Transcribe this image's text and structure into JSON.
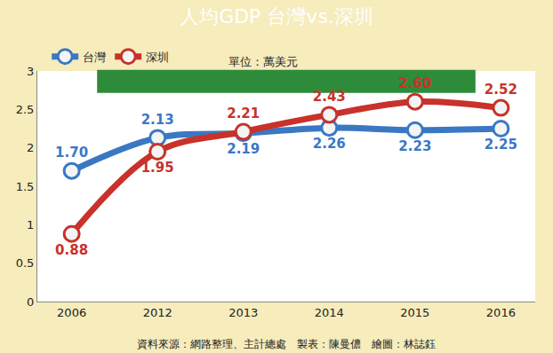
{
  "chart_data": {
    "type": "line",
    "title": "人均GDP 台灣vs.深圳",
    "categories": [
      "2006",
      "2012",
      "2013",
      "2014",
      "2015",
      "2016"
    ],
    "series": [
      {
        "name": "台灣",
        "color": "#3a78c3",
        "marker": "circle",
        "values": [
          1.7,
          2.13,
          2.19,
          2.26,
          2.23,
          2.25
        ],
        "value_labels": [
          "1.70",
          "2.13",
          "2.19",
          "2.26",
          "2.23",
          "2.25"
        ]
      },
      {
        "name": "深圳",
        "color": "#c8322a",
        "marker": "circle",
        "values": [
          0.88,
          1.95,
          2.21,
          2.43,
          2.6,
          2.52
        ],
        "value_labels": [
          "0.88",
          "1.95",
          "2.21",
          "2.43",
          "2.60",
          "2.52"
        ]
      }
    ],
    "ylim": [
      0,
      3
    ],
    "yticks": [
      0,
      0.5,
      1,
      1.5,
      2,
      2.5,
      3
    ],
    "grid": false,
    "legend": "top-left",
    "data_labels": true,
    "line_style": "solid",
    "annotations": [
      "單位：萬美元",
      "資料來源：網路整理、主計總處　製表：陳曼儂　繪圖：林誌鈺"
    ]
  }
}
